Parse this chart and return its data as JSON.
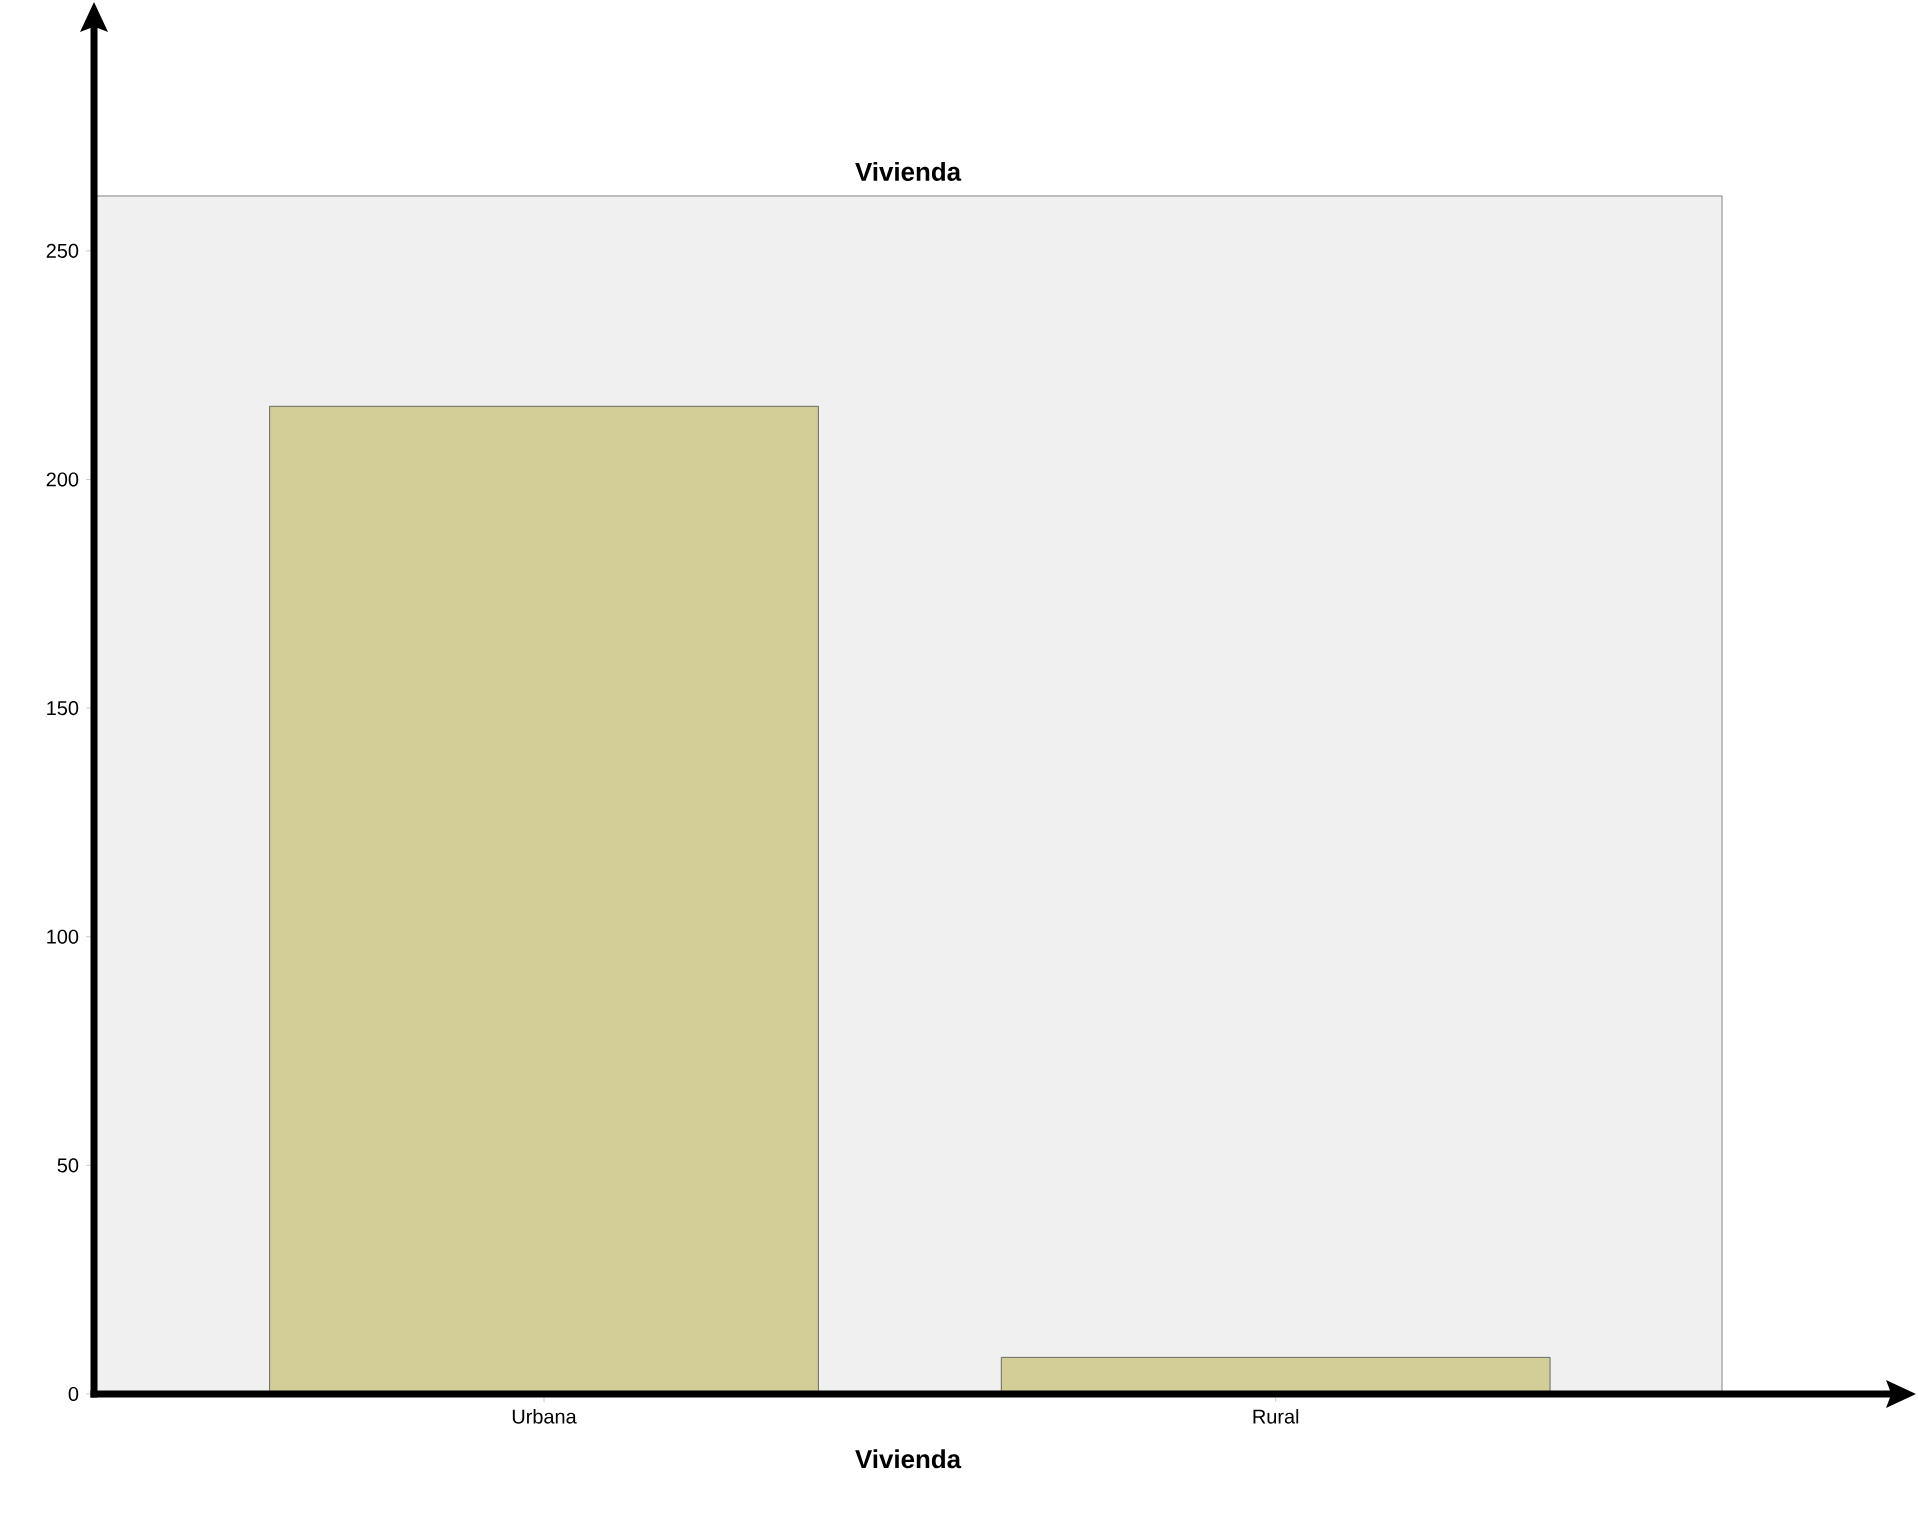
{
  "chart_data": {
    "type": "bar",
    "title": "Vivienda",
    "xlabel": "Vivienda",
    "categories": [
      "Urbana",
      "Rural"
    ],
    "values": [
      216,
      8
    ],
    "color": "#d3ce97",
    "ylim": [
      0,
      262
    ],
    "yticks": [
      0,
      50,
      100,
      150,
      200,
      250
    ],
    "grid": false
  }
}
